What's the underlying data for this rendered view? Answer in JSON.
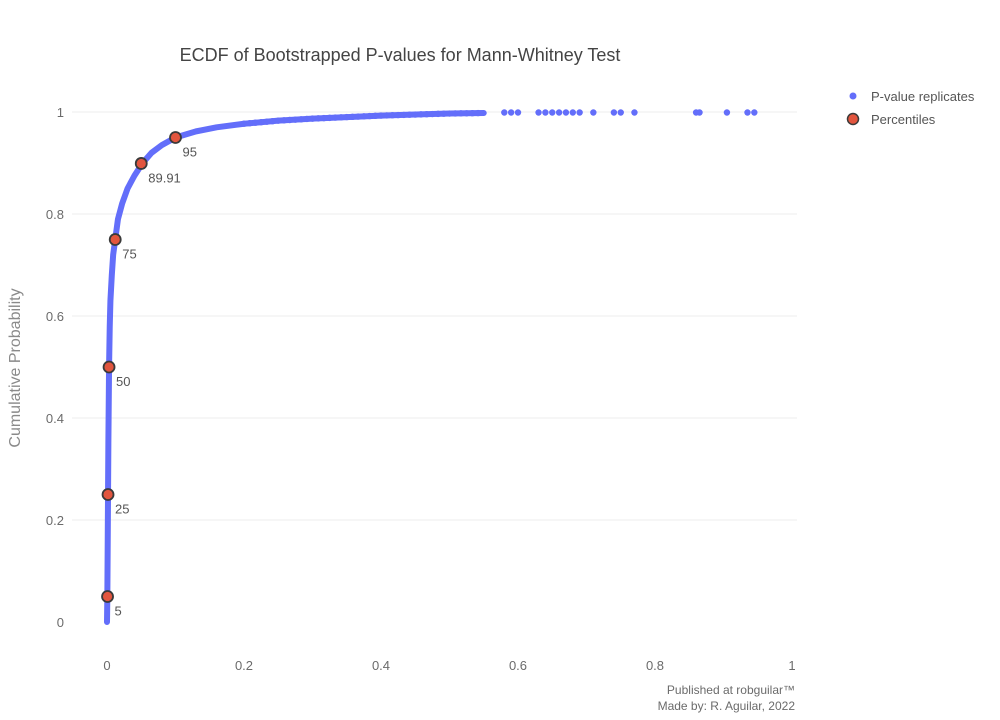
{
  "chart_data": {
    "type": "scatter",
    "title": "ECDF of Bootstrapped P-values for Mann-Whitney Test",
    "xlabel": "",
    "ylabel": "Cumulative Probability",
    "xlim": [
      0,
      1
    ],
    "ylim": [
      0,
      1
    ],
    "xticks": [
      0,
      0.2,
      0.4,
      0.6,
      0.8,
      1
    ],
    "xtick_labels": [
      "0",
      "0.2",
      "0.4",
      "0.6",
      "0.8",
      "1"
    ],
    "yticks": [
      0,
      0.2,
      0.4,
      0.6,
      0.8,
      1
    ],
    "ytick_labels": [
      "0",
      "0.2",
      "0.4",
      "0.6",
      "0.8",
      "1"
    ],
    "grid": true,
    "legend_position": "top-right",
    "series": [
      {
        "name": "P-value replicates",
        "color": "#636efa",
        "ecdf_points": [
          [
            0.0,
            0.0
          ],
          [
            0.0005,
            0.05
          ],
          [
            0.001,
            0.15
          ],
          [
            0.0015,
            0.25
          ],
          [
            0.002,
            0.35
          ],
          [
            0.003,
            0.5
          ],
          [
            0.004,
            0.58
          ],
          [
            0.005,
            0.63
          ],
          [
            0.007,
            0.68
          ],
          [
            0.009,
            0.72
          ],
          [
            0.012,
            0.75
          ],
          [
            0.016,
            0.79
          ],
          [
            0.022,
            0.82
          ],
          [
            0.03,
            0.85
          ],
          [
            0.04,
            0.875
          ],
          [
            0.052,
            0.9
          ],
          [
            0.065,
            0.92
          ],
          [
            0.08,
            0.935
          ],
          [
            0.1,
            0.95
          ],
          [
            0.13,
            0.962
          ],
          [
            0.16,
            0.97
          ],
          [
            0.2,
            0.977
          ],
          [
            0.25,
            0.983
          ],
          [
            0.3,
            0.987
          ],
          [
            0.35,
            0.99
          ],
          [
            0.4,
            0.993
          ],
          [
            0.45,
            0.995
          ],
          [
            0.5,
            0.997
          ],
          [
            0.55,
            0.998
          ]
        ],
        "sparse_x": [
          0.58,
          0.59,
          0.6,
          0.63,
          0.64,
          0.65,
          0.66,
          0.67,
          0.68,
          0.69,
          0.71,
          0.74,
          0.75,
          0.77,
          0.86,
          0.865,
          0.905,
          0.935,
          0.945
        ]
      },
      {
        "name": "Percentiles",
        "color": "#e2553e",
        "edge_color": "#3a3a3a",
        "points": [
          {
            "x": 0.0008,
            "y": 0.05,
            "label": "5"
          },
          {
            "x": 0.0015,
            "y": 0.25,
            "label": "25"
          },
          {
            "x": 0.003,
            "y": 0.5,
            "label": "50"
          },
          {
            "x": 0.012,
            "y": 0.75,
            "label": "75"
          },
          {
            "x": 0.05,
            "y": 0.8991,
            "label": "89.91"
          },
          {
            "x": 0.1,
            "y": 0.95,
            "label": "95"
          }
        ]
      }
    ]
  },
  "footer": {
    "line1": "Published at robguilar™",
    "line2": "Made by:  R. Aguilar, 2022"
  }
}
